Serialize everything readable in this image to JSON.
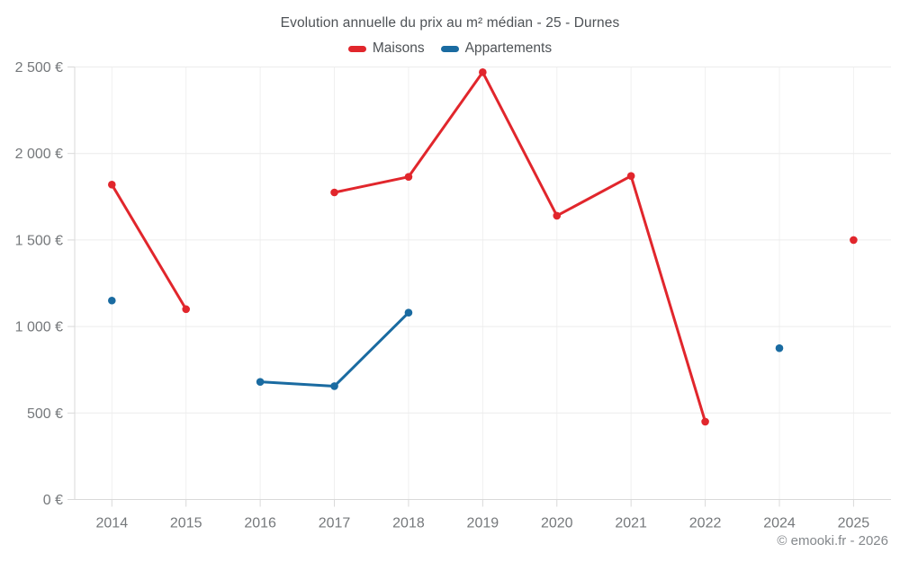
{
  "title": "Evolution annuelle du prix au m² médian - 25 - Durnes",
  "copyright": "© emooki.fr - 2026",
  "axis": {
    "ytick_labels": [
      "0 €",
      "500 €",
      "1 000 €",
      "1 500 €",
      "2 000 €",
      "2 500 €"
    ]
  },
  "chart_data": {
    "type": "line",
    "title": "Evolution annuelle du prix au m² médian - 25 - Durnes",
    "categories": [
      "2014",
      "2015",
      "2016",
      "2017",
      "2018",
      "2019",
      "2020",
      "2021",
      "2022",
      "2024",
      "2025"
    ],
    "series": [
      {
        "name": "Maisons",
        "color": "#e1262c",
        "values": [
          1820,
          1100,
          null,
          1775,
          1865,
          2470,
          1640,
          1870,
          450,
          null,
          1500
        ]
      },
      {
        "name": "Appartements",
        "color": "#1a6ba1",
        "values": [
          1150,
          null,
          680,
          655,
          1080,
          null,
          null,
          null,
          null,
          875,
          null
        ]
      }
    ],
    "xlabel": "",
    "ylabel": "",
    "ylim": [
      0,
      2500
    ],
    "ytick_step": 500,
    "ytick_labels": [
      "0 €",
      "500 €",
      "1 000 €",
      "1 500 €",
      "2 000 €",
      "2 500 €"
    ],
    "grid": true,
    "legend_position": "top",
    "marker": "circle",
    "gap_years_note": "2023 absent from x axis"
  },
  "style": {
    "grid_color": "#ececec",
    "vgrid_color": "#f0f0f0",
    "axis_color": "#d9d9d9",
    "tick_text_color": "#75787b",
    "title_text_color": "#4e5256"
  }
}
